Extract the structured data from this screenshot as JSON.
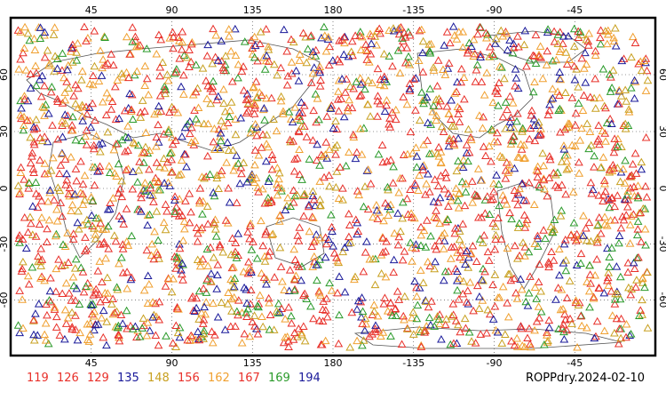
{
  "map": {
    "top_labels": [
      "45",
      "90",
      "135",
      "180",
      "-135",
      "-90",
      "-45"
    ],
    "bottom_labels": [
      "45",
      "90",
      "135",
      "180",
      "-135",
      "-90",
      "-45"
    ],
    "left_labels": [
      "60",
      "30",
      "0",
      "-30",
      "-60"
    ],
    "right_labels": [
      "60",
      "30",
      "0",
      "-30",
      "-60"
    ],
    "longitudes": [
      45,
      90,
      135,
      180,
      -135,
      -90,
      -45
    ],
    "latitudes": [
      60,
      30,
      0,
      -30,
      -60
    ]
  },
  "legend": {
    "items": [
      {
        "label": "119",
        "color": "#e8302a"
      },
      {
        "label": "126",
        "color": "#e8302a"
      },
      {
        "label": "129",
        "color": "#e8302a"
      },
      {
        "label": "135",
        "color": "#1a1a9a"
      },
      {
        "label": "148",
        "color": "#c8a020"
      },
      {
        "label": "156",
        "color": "#e8302a"
      },
      {
        "label": "162",
        "color": "#f0a030"
      },
      {
        "label": "167",
        "color": "#e8302a"
      },
      {
        "label": "169",
        "color": "#2a9a2a"
      },
      {
        "label": "194",
        "color": "#1a1a9a"
      }
    ]
  },
  "caption": "ROPPdry.2024-02-10",
  "marker_palette": [
    "#e8302a",
    "#f0a030",
    "#e8302a",
    "#f0a030",
    "#1a1a9a",
    "#2a9a2a",
    "#c8a020",
    "#e8302a"
  ],
  "marker_icon": "triangle-outline-icon"
}
